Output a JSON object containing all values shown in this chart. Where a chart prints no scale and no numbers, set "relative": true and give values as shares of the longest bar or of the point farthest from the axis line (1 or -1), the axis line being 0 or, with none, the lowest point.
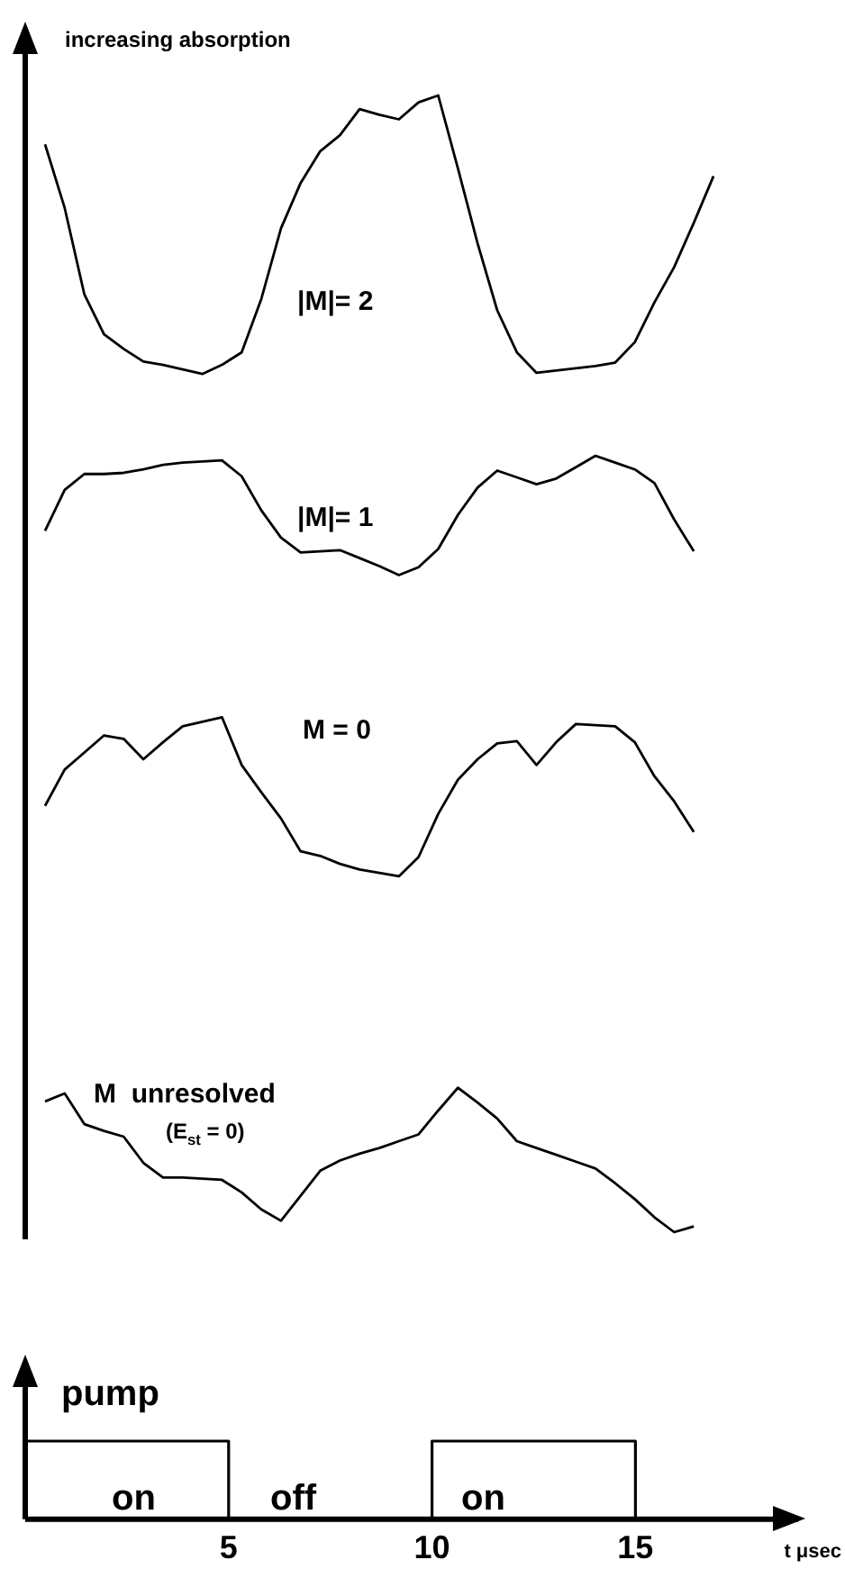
{
  "chart_data": [
    {
      "type": "line",
      "ylabel": "increasing absorption",
      "relative": true,
      "tick_labels": false,
      "categories": [
        null,
        null,
        null,
        null,
        null,
        null,
        null,
        null,
        null,
        null,
        null,
        null,
        null,
        null,
        null,
        null,
        null,
        null,
        null,
        null,
        null,
        null,
        null,
        null,
        null,
        null,
        null,
        null,
        null,
        null,
        null,
        null,
        null,
        null,
        null
      ],
      "series": [
        {
          "name": "|M|= 2",
          "color": "#000000",
          "values": [
            0.957,
            0.901,
            0.825,
            0.79,
            0.777,
            0.766,
            0.763,
            0.759,
            0.755,
            0.763,
            0.774,
            0.821,
            0.883,
            0.923,
            0.951,
            0.965,
            0.988,
            0.983,
            0.979,
            0.994,
            1,
            0.936,
            0.87,
            0.811,
            0.774,
            0.756,
            0.758,
            0.76,
            0.762,
            0.765,
            0.783,
            0.818,
            0.849,
            0.888,
            0.929
          ]
        },
        {
          "name": "|M|= 1",
          "color": "#000000",
          "values": [
            0.617,
            0.653,
            0.667,
            0.667,
            0.668,
            0.671,
            0.675,
            0.677,
            0.678,
            0.679,
            0.665,
            0.635,
            0.611,
            0.598,
            0.599,
            0.6,
            0.593,
            0.586,
            0.578,
            0.585,
            0.601,
            0.631,
            0.655,
            0.67,
            0.664,
            0.658,
            0.663,
            0.673,
            0.683,
            0.677,
            0.671,
            0.659,
            0.627,
            0.599,
            null
          ]
        },
        {
          "name": "M = 0",
          "color": "#000000",
          "values": [
            0.375,
            0.407,
            0.422,
            0.437,
            0.434,
            0.416,
            0.431,
            0.445,
            0.449,
            0.453,
            0.411,
            0.387,
            0.364,
            0.335,
            0.331,
            0.324,
            0.319,
            0.316,
            0.313,
            0.33,
            0.368,
            0.398,
            0.416,
            0.43,
            0.432,
            0.411,
            0.431,
            0.447,
            0.446,
            0.445,
            0.431,
            0.401,
            0.379,
            0.352,
            null
          ]
        },
        {
          "name": "M  unresolved (E$_{st}$ = 0)",
          "color": "#000000",
          "values": [
            0.115,
            0.122,
            0.095,
            0.089,
            0.084,
            0.061,
            0.048,
            0.048,
            0.047,
            0.046,
            0.035,
            0.02,
            0.01,
            0.032,
            0.054,
            0.063,
            0.069,
            0.074,
            0.08,
            0.086,
            0.107,
            0.127,
            0.114,
            0.1,
            0.08,
            0.074,
            0.068,
            0.062,
            0.056,
            0.043,
            0.029,
            0.013,
            0,
            0.005,
            null
          ]
        }
      ]
    },
    {
      "type": "step",
      "ylabel": "pump",
      "xlabel": "t μsec",
      "relative": true,
      "xlim": [
        0,
        19
      ],
      "xticks": [
        5,
        10,
        15
      ],
      "color": "#000000",
      "x": [
        0,
        5,
        10,
        15
      ],
      "values": [
        1,
        0,
        1,
        0
      ],
      "annotations": [
        "on",
        "off",
        "on"
      ]
    }
  ]
}
